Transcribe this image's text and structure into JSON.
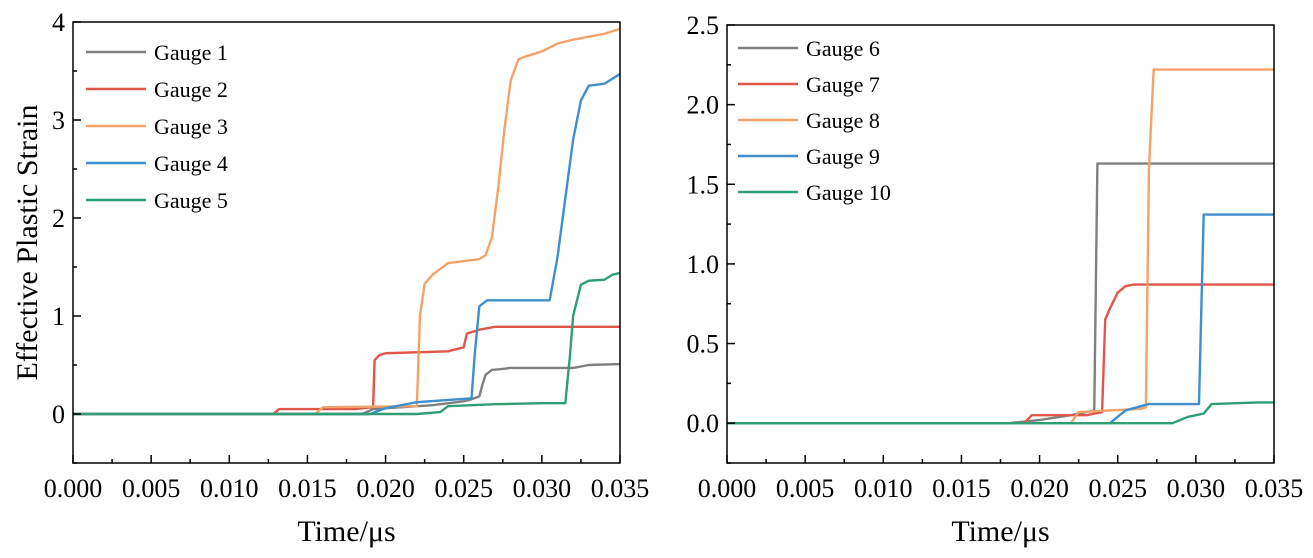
{
  "chart_data": [
    {
      "type": "line",
      "xlabel": "Time/μs",
      "ylabel": "Effective Plastic Strain",
      "xlim": [
        0,
        0.035
      ],
      "ylim": [
        -0.5,
        4
      ],
      "xticks": [
        "0.000",
        "0.005",
        "0.010",
        "0.015",
        "0.020",
        "0.025",
        "0.030",
        "0.035"
      ],
      "xtick_values": [
        0,
        0.005,
        0.01,
        0.015,
        0.02,
        0.025,
        0.03,
        0.035
      ],
      "yticks": [
        "0",
        "1",
        "2",
        "3",
        "4"
      ],
      "ytick_values": [
        0,
        1,
        2,
        3,
        4
      ],
      "legend_position": "top-left",
      "series": [
        {
          "name": "Gauge 1",
          "color": "#808080",
          "x": [
            0,
            0.0185,
            0.0192,
            0.023,
            0.025,
            0.0255,
            0.026,
            0.0262,
            0.0264,
            0.0268,
            0.0275,
            0.028,
            0.032,
            0.033,
            0.035
          ],
          "y": [
            0,
            0,
            0.05,
            0.09,
            0.13,
            0.15,
            0.18,
            0.3,
            0.4,
            0.45,
            0.46,
            0.47,
            0.47,
            0.5,
            0.51
          ]
        },
        {
          "name": "Gauge 2",
          "color": "#e0564b",
          "x": [
            0,
            0.0128,
            0.0132,
            0.018,
            0.0192,
            0.0193,
            0.0196,
            0.02,
            0.024,
            0.0245,
            0.025,
            0.0252,
            0.026,
            0.027,
            0.035
          ],
          "y": [
            0,
            0,
            0.05,
            0.05,
            0.07,
            0.55,
            0.6,
            0.62,
            0.64,
            0.66,
            0.68,
            0.82,
            0.86,
            0.89,
            0.89
          ]
        },
        {
          "name": "Gauge 3",
          "color": "#f2a36a",
          "x": [
            0,
            0.0155,
            0.016,
            0.022,
            0.0222,
            0.0225,
            0.023,
            0.024,
            0.026,
            0.0264,
            0.0268,
            0.0272,
            0.0276,
            0.028,
            0.0285,
            0.029,
            0.03,
            0.031,
            0.032,
            0.033,
            0.034,
            0.035
          ],
          "y": [
            0,
            0,
            0.07,
            0.08,
            1.0,
            1.33,
            1.42,
            1.54,
            1.58,
            1.62,
            1.8,
            2.3,
            2.9,
            3.4,
            3.62,
            3.65,
            3.7,
            3.78,
            3.82,
            3.85,
            3.88,
            3.93
          ]
        },
        {
          "name": "Gauge 4",
          "color": "#3f8fcc",
          "x": [
            0,
            0.019,
            0.02,
            0.022,
            0.0255,
            0.0257,
            0.026,
            0.0265,
            0.028,
            0.0305,
            0.031,
            0.0315,
            0.032,
            0.0325,
            0.033,
            0.034,
            0.0345,
            0.035
          ],
          "y": [
            0,
            0,
            0.06,
            0.12,
            0.16,
            0.6,
            1.1,
            1.16,
            1.16,
            1.16,
            1.6,
            2.2,
            2.8,
            3.2,
            3.35,
            3.37,
            3.42,
            3.47
          ]
        },
        {
          "name": "Gauge 5",
          "color": "#2f9e73",
          "x": [
            0,
            0.022,
            0.0235,
            0.024,
            0.027,
            0.03,
            0.0315,
            0.0318,
            0.032,
            0.0325,
            0.033,
            0.034,
            0.0345,
            0.035
          ],
          "y": [
            0,
            0,
            0.02,
            0.08,
            0.1,
            0.11,
            0.11,
            0.6,
            1.0,
            1.32,
            1.36,
            1.37,
            1.42,
            1.44
          ]
        }
      ]
    },
    {
      "type": "line",
      "xlabel": "Time/μs",
      "ylabel": "",
      "xlim": [
        0,
        0.035
      ],
      "ylim": [
        -0.25,
        2.5
      ],
      "xticks": [
        "0.000",
        "0.005",
        "0.010",
        "0.015",
        "0.020",
        "0.025",
        "0.030",
        "0.035"
      ],
      "xtick_values": [
        0,
        0.005,
        0.01,
        0.015,
        0.02,
        0.025,
        0.03,
        0.035
      ],
      "yticks": [
        "0.0",
        "0.5",
        "1.0",
        "1.5",
        "2.0",
        "2.5"
      ],
      "ytick_values": [
        0,
        0.5,
        1.0,
        1.5,
        2.0,
        2.5
      ],
      "legend_position": "top-left",
      "series": [
        {
          "name": "Gauge 6",
          "color": "#808080",
          "x": [
            0,
            0.018,
            0.02,
            0.022,
            0.0235,
            0.0237,
            0.024,
            0.035
          ],
          "y": [
            0,
            0,
            0.02,
            0.05,
            0.08,
            1.63,
            1.63,
            1.63
          ]
        },
        {
          "name": "Gauge 7",
          "color": "#e0564b",
          "x": [
            0,
            0.019,
            0.0195,
            0.023,
            0.024,
            0.0242,
            0.0245,
            0.025,
            0.0255,
            0.026,
            0.035
          ],
          "y": [
            0,
            0,
            0.05,
            0.05,
            0.07,
            0.65,
            0.72,
            0.82,
            0.86,
            0.87,
            0.87
          ]
        },
        {
          "name": "Gauge 8",
          "color": "#f2a36a",
          "x": [
            0,
            0.022,
            0.0225,
            0.0265,
            0.0268,
            0.027,
            0.0273,
            0.035
          ],
          "y": [
            0,
            0,
            0.07,
            0.09,
            0.1,
            1.6,
            2.22,
            2.22
          ]
        },
        {
          "name": "Gauge 9",
          "color": "#3f8fcc",
          "x": [
            0,
            0.0245,
            0.0255,
            0.027,
            0.0302,
            0.0305,
            0.035
          ],
          "y": [
            0,
            0,
            0.08,
            0.12,
            0.12,
            1.31,
            1.31
          ]
        },
        {
          "name": "Gauge 10",
          "color": "#2f9e73",
          "x": [
            0,
            0.0285,
            0.0295,
            0.0305,
            0.031,
            0.034,
            0.035
          ],
          "y": [
            0,
            0,
            0.04,
            0.06,
            0.12,
            0.13,
            0.13
          ]
        }
      ]
    }
  ]
}
